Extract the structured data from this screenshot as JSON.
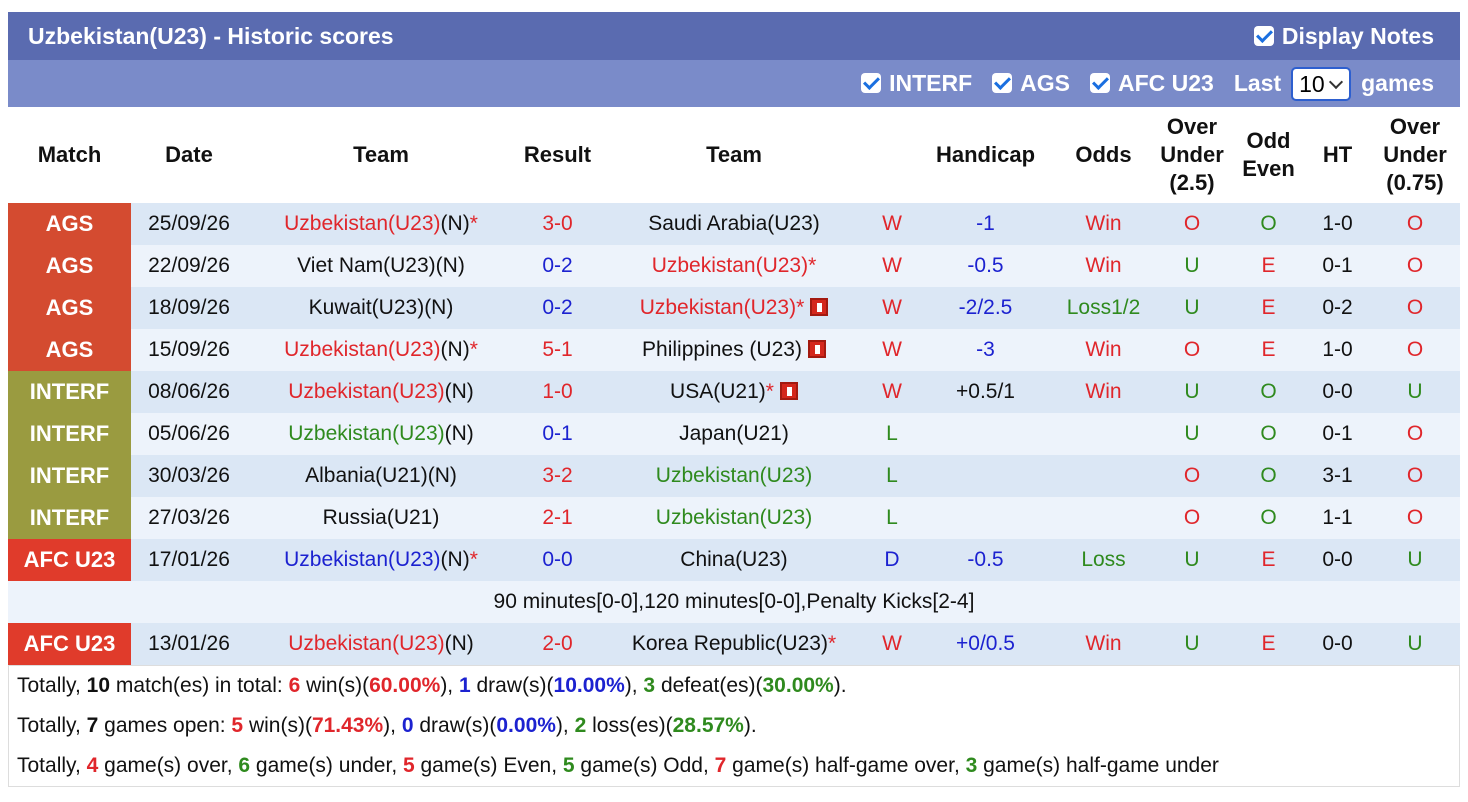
{
  "header": {
    "title": "Uzbekistan(U23) - Historic scores",
    "display_notes": "Display Notes"
  },
  "filters": {
    "items": [
      "INTERF",
      "AGS",
      "AFC U23"
    ],
    "last": "Last",
    "count": "10",
    "games": "games"
  },
  "table": {
    "columns": [
      "Match",
      "Date",
      "Team",
      "Result",
      "Team",
      "Handicap",
      "Odds",
      "Over Under (2.5)",
      "Odd Even",
      "HT",
      "Over Under (0.75)"
    ],
    "rows": [
      {
        "match": "AGS",
        "match_color": "#d44b30",
        "date": "25/09/26",
        "home": {
          "name": "Uzbekistan(U23)",
          "color": "red",
          "neutral": "(N)",
          "star": "*"
        },
        "score": "3-0",
        "score_color": "red",
        "away": {
          "name": "Saudi Arabia(U23)",
          "color": "black"
        },
        "result": "W",
        "result_color": "red",
        "handicap": "-1",
        "handicap_color": "blue",
        "odds": "Win",
        "odds_color": "red",
        "ou": "O",
        "ou_color": "red",
        "oe": "O",
        "oe_color": "green",
        "ht": "1-0",
        "ou075": "O",
        "ou075_color": "red"
      },
      {
        "match": "AGS",
        "match_color": "#d44b30",
        "date": "22/09/26",
        "home": {
          "name": "Viet Nam(U23)",
          "color": "black",
          "neutral": "(N)"
        },
        "score": "0-2",
        "score_color": "blue",
        "away": {
          "name": "Uzbekistan(U23)",
          "color": "red",
          "star": "*"
        },
        "result": "W",
        "result_color": "red",
        "handicap": "-0.5",
        "handicap_color": "blue",
        "odds": "Win",
        "odds_color": "red",
        "ou": "U",
        "ou_color": "green",
        "oe": "E",
        "oe_color": "red",
        "ht": "0-1",
        "ou075": "O",
        "ou075_color": "red"
      },
      {
        "match": "AGS",
        "match_color": "#d44b30",
        "date": "18/09/26",
        "home": {
          "name": "Kuwait(U23)",
          "color": "black",
          "neutral": "(N)"
        },
        "score": "0-2",
        "score_color": "blue",
        "away": {
          "name": "Uzbekistan(U23)",
          "color": "red",
          "star": "*",
          "card": true
        },
        "result": "W",
        "result_color": "red",
        "handicap": "-2/2.5",
        "handicap_color": "blue",
        "odds": "Loss1/2",
        "odds_color": "green",
        "ou": "U",
        "ou_color": "green",
        "oe": "E",
        "oe_color": "red",
        "ht": "0-2",
        "ou075": "O",
        "ou075_color": "red"
      },
      {
        "match": "AGS",
        "match_color": "#d44b30",
        "date": "15/09/26",
        "home": {
          "name": "Uzbekistan(U23)",
          "color": "red",
          "neutral": "(N)",
          "star": "*"
        },
        "score": "5-1",
        "score_color": "red",
        "away": {
          "name": "Philippines (U23)",
          "color": "black",
          "card": true
        },
        "result": "W",
        "result_color": "red",
        "handicap": "-3",
        "handicap_color": "blue",
        "odds": "Win",
        "odds_color": "red",
        "ou": "O",
        "ou_color": "red",
        "oe": "E",
        "oe_color": "red",
        "ht": "1-0",
        "ou075": "O",
        "ou075_color": "red"
      },
      {
        "match": "INTERF",
        "match_color": "#9a9b40",
        "date": "08/06/26",
        "home": {
          "name": "Uzbekistan(U23)",
          "color": "red",
          "neutral": "(N)"
        },
        "score": "1-0",
        "score_color": "red",
        "away": {
          "name": "USA(U21)",
          "color": "black",
          "star": "*",
          "card": true
        },
        "result": "W",
        "result_color": "red",
        "handicap": "+0.5/1",
        "handicap_color": "black",
        "odds": "Win",
        "odds_color": "red",
        "ou": "U",
        "ou_color": "green",
        "oe": "O",
        "oe_color": "green",
        "ht": "0-0",
        "ou075": "U",
        "ou075_color": "green"
      },
      {
        "match": "INTERF",
        "match_color": "#9a9b40",
        "date": "05/06/26",
        "home": {
          "name": "Uzbekistan(U23)",
          "color": "green",
          "neutral": "(N)"
        },
        "score": "0-1",
        "score_color": "blue",
        "away": {
          "name": "Japan(U21)",
          "color": "black"
        },
        "result": "L",
        "result_color": "green",
        "ou": "U",
        "ou_color": "green",
        "oe": "O",
        "oe_color": "green",
        "ht": "0-1",
        "ou075": "O",
        "ou075_color": "red"
      },
      {
        "match": "INTERF",
        "match_color": "#9a9b40",
        "date": "30/03/26",
        "home": {
          "name": "Albania(U21)",
          "color": "black",
          "neutral": "(N)"
        },
        "score": "3-2",
        "score_color": "red",
        "away": {
          "name": "Uzbekistan(U23)",
          "color": "green"
        },
        "result": "L",
        "result_color": "green",
        "ou": "O",
        "ou_color": "red",
        "oe": "O",
        "oe_color": "green",
        "ht": "3-1",
        "ou075": "O",
        "ou075_color": "red"
      },
      {
        "match": "INTERF",
        "match_color": "#9a9b40",
        "date": "27/03/26",
        "home": {
          "name": "Russia(U21)",
          "color": "black"
        },
        "score": "2-1",
        "score_color": "red",
        "away": {
          "name": "Uzbekistan(U23)",
          "color": "green"
        },
        "result": "L",
        "result_color": "green",
        "ou": "O",
        "ou_color": "red",
        "oe": "O",
        "oe_color": "green",
        "ht": "1-1",
        "ou075": "O",
        "ou075_color": "red"
      },
      {
        "match": "AFC U23",
        "match_color": "#e03b2b",
        "date": "17/01/26",
        "home": {
          "name": "Uzbekistan(U23)",
          "color": "blue",
          "neutral": "(N)",
          "star": "*"
        },
        "score": "0-0",
        "score_color": "blue",
        "away": {
          "name": "China(U23)",
          "color": "black"
        },
        "result": "D",
        "result_color": "blue",
        "handicap": "-0.5",
        "handicap_color": "blue",
        "odds": "Loss",
        "odds_color": "green",
        "ou": "U",
        "ou_color": "green",
        "oe": "E",
        "oe_color": "red",
        "ht": "0-0",
        "ou075": "U",
        "ou075_color": "green",
        "note": "90 minutes[0-0],120 minutes[0-0],Penalty Kicks[2-4]"
      },
      {
        "match": "AFC U23",
        "match_color": "#e03b2b",
        "date": "13/01/26",
        "home": {
          "name": "Uzbekistan(U23)",
          "color": "red",
          "neutral": "(N)"
        },
        "score": "2-0",
        "score_color": "red",
        "away": {
          "name": "Korea Republic(U23)",
          "color": "black",
          "star": "*"
        },
        "result": "W",
        "result_color": "red",
        "handicap": "+0/0.5",
        "handicap_color": "blue",
        "odds": "Win",
        "odds_color": "red",
        "ou": "U",
        "ou_color": "green",
        "oe": "E",
        "oe_color": "red",
        "ht": "0-0",
        "ou075": "U",
        "ou075_color": "green"
      }
    ]
  },
  "summary": [
    [
      {
        "t": "Totally, "
      },
      {
        "t": "10",
        "c": "black"
      },
      {
        "t": " match(es) in total: "
      },
      {
        "t": "6",
        "c": "red"
      },
      {
        "t": " win(s)("
      },
      {
        "t": "60.00%",
        "c": "red"
      },
      {
        "t": "), "
      },
      {
        "t": "1",
        "c": "blue"
      },
      {
        "t": " draw(s)("
      },
      {
        "t": "10.00%",
        "c": "blue"
      },
      {
        "t": "), "
      },
      {
        "t": "3",
        "c": "green"
      },
      {
        "t": " defeat(es)("
      },
      {
        "t": "30.00%",
        "c": "green"
      },
      {
        "t": ")."
      }
    ],
    [
      {
        "t": "Totally, "
      },
      {
        "t": "7",
        "c": "black"
      },
      {
        "t": " games open: "
      },
      {
        "t": "5",
        "c": "red"
      },
      {
        "t": " win(s)("
      },
      {
        "t": "71.43%",
        "c": "red"
      },
      {
        "t": "), "
      },
      {
        "t": "0",
        "c": "blue"
      },
      {
        "t": " draw(s)("
      },
      {
        "t": "0.00%",
        "c": "blue"
      },
      {
        "t": "), "
      },
      {
        "t": "2",
        "c": "green"
      },
      {
        "t": " loss(es)("
      },
      {
        "t": "28.57%",
        "c": "green"
      },
      {
        "t": ")."
      }
    ],
    [
      {
        "t": "Totally, "
      },
      {
        "t": "4",
        "c": "red"
      },
      {
        "t": " game(s) over, "
      },
      {
        "t": "6",
        "c": "green"
      },
      {
        "t": " game(s) under, "
      },
      {
        "t": "5",
        "c": "red"
      },
      {
        "t": " game(s) Even, "
      },
      {
        "t": "5",
        "c": "green"
      },
      {
        "t": " game(s) Odd, "
      },
      {
        "t": "7",
        "c": "red"
      },
      {
        "t": " game(s) half-game over, "
      },
      {
        "t": "3",
        "c": "green"
      },
      {
        "t": " game(s) half-game under"
      }
    ]
  ]
}
